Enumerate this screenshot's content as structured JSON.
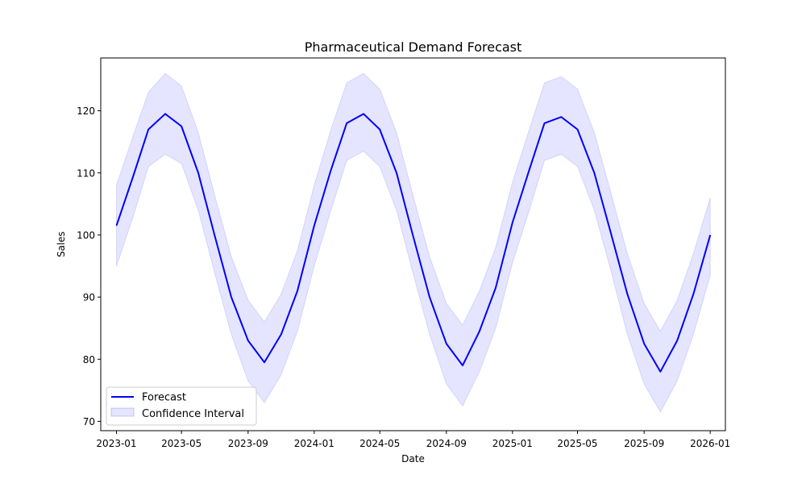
{
  "chart_data": {
    "type": "line",
    "title": "Pharmaceutical Demand Forecast",
    "xlabel": "Date",
    "ylabel": "Sales",
    "x_ticks": [
      "2023-01",
      "2023-05",
      "2023-09",
      "2024-01",
      "2024-05",
      "2024-09",
      "2025-01",
      "2025-05",
      "2025-09",
      "2026-01"
    ],
    "y_ticks": [
      70,
      80,
      90,
      100,
      110,
      120
    ],
    "xlim": [
      "2022-12-03",
      "2026-01-29"
    ],
    "ylim": [
      68.5,
      128.5
    ],
    "grid": false,
    "legend_position": "lower-left",
    "series": [
      {
        "name": "Forecast",
        "color": "#0000ff",
        "x": [
          "2023-01-01",
          "2023-02-01",
          "2023-03-01",
          "2023-04-01",
          "2023-05-01",
          "2023-06-01",
          "2023-07-01",
          "2023-08-01",
          "2023-09-01",
          "2023-10-01",
          "2023-11-01",
          "2023-12-01",
          "2024-01-01",
          "2024-02-01",
          "2024-03-01",
          "2024-04-01",
          "2024-05-01",
          "2024-06-01",
          "2024-07-01",
          "2024-08-01",
          "2024-09-01",
          "2024-10-01",
          "2024-11-01",
          "2024-12-01",
          "2025-01-01",
          "2025-02-01",
          "2025-03-01",
          "2025-04-01",
          "2025-05-01",
          "2025-06-01",
          "2025-07-01",
          "2025-08-01",
          "2025-09-01",
          "2025-10-01",
          "2025-11-01",
          "2025-12-01",
          "2026-01-01"
        ],
        "y": [
          101.5,
          109.5,
          117.0,
          119.5,
          117.5,
          110.0,
          100.0,
          90.0,
          83.0,
          79.5,
          84.0,
          91.0,
          101.5,
          110.5,
          118.0,
          119.5,
          117.0,
          110.0,
          100.0,
          90.0,
          82.5,
          79.0,
          84.5,
          91.5,
          102.0,
          110.5,
          118.0,
          119.0,
          117.0,
          110.0,
          100.5,
          90.5,
          82.5,
          78.0,
          83.0,
          90.5,
          100.0
        ]
      },
      {
        "name": "Confidence Interval",
        "type": "area",
        "color": "#0000ff",
        "opacity": 0.1,
        "x": [
          "2023-01-01",
          "2023-02-01",
          "2023-03-01",
          "2023-04-01",
          "2023-05-01",
          "2023-06-01",
          "2023-07-01",
          "2023-08-01",
          "2023-09-01",
          "2023-10-01",
          "2023-11-01",
          "2023-12-01",
          "2024-01-01",
          "2024-02-01",
          "2024-03-01",
          "2024-04-01",
          "2024-05-01",
          "2024-06-01",
          "2024-07-01",
          "2024-08-01",
          "2024-09-01",
          "2024-10-01",
          "2024-11-01",
          "2024-12-01",
          "2025-01-01",
          "2025-02-01",
          "2025-03-01",
          "2025-04-01",
          "2025-05-01",
          "2025-06-01",
          "2025-07-01",
          "2025-08-01",
          "2025-09-01",
          "2025-10-01",
          "2025-11-01",
          "2025-12-01",
          "2026-01-01"
        ],
        "lower": [
          95.0,
          103.0,
          111.0,
          113.0,
          111.5,
          104.0,
          94.0,
          84.0,
          76.5,
          73.0,
          77.5,
          84.5,
          95.0,
          104.0,
          112.0,
          113.5,
          111.0,
          104.0,
          94.0,
          84.0,
          76.0,
          72.5,
          78.0,
          85.0,
          95.5,
          104.0,
          112.0,
          113.0,
          111.0,
          104.0,
          94.5,
          84.0,
          76.0,
          71.5,
          76.5,
          84.0,
          93.5
        ],
        "upper": [
          108.0,
          116.0,
          123.0,
          126.0,
          124.0,
          116.5,
          106.5,
          96.5,
          89.5,
          86.0,
          90.5,
          97.5,
          108.0,
          117.0,
          124.5,
          126.0,
          123.5,
          116.5,
          106.5,
          96.5,
          89.0,
          85.5,
          91.0,
          98.0,
          108.5,
          117.0,
          124.5,
          125.5,
          123.5,
          116.5,
          107.0,
          97.0,
          89.0,
          84.5,
          89.5,
          97.0,
          106.0
        ]
      }
    ]
  }
}
